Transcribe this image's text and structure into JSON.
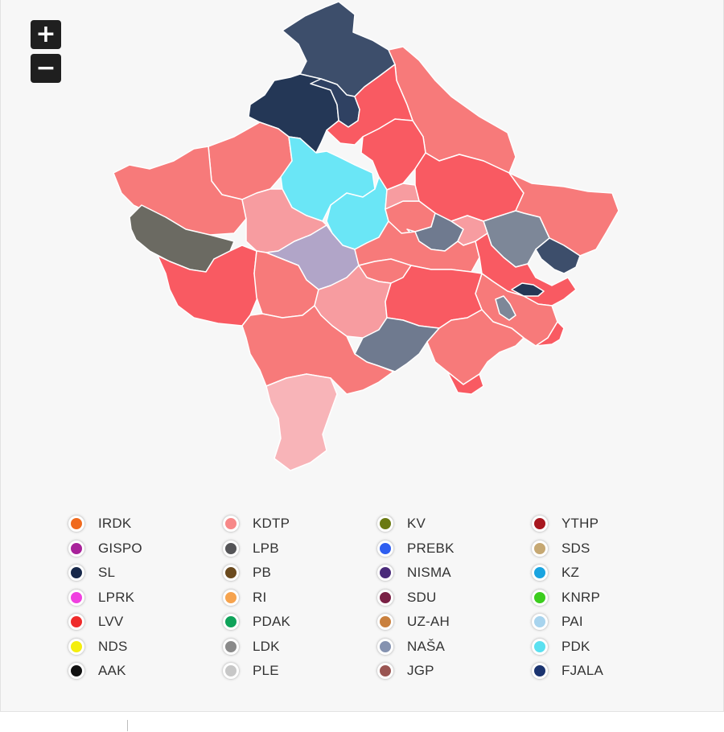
{
  "zoom": {
    "in_label": "+",
    "out_label": "−"
  },
  "colors": {
    "kdtp_strong": "#f95a62",
    "kdtp_mid": "#f77a7a",
    "kdtp_light": "#f79ca0",
    "kdtp_pale": "#f8b4b8",
    "lvv_light": "#fa8e8e",
    "pdk": "#6ae6f6",
    "sl_dark": "#243756",
    "sl_mid": "#3d4e6b",
    "lpb": "#6b6a62",
    "nasa": "#b1a5c8",
    "grey_blue": "#6f7a8f",
    "grey_blue_light": "#7d8798"
  },
  "legend": [
    {
      "label": "IRDK",
      "color": "#f06a1e"
    },
    {
      "label": "GISPO",
      "color": "#a8229a"
    },
    {
      "label": "SL",
      "color": "#17284a"
    },
    {
      "label": "LPRK",
      "color": "#f040e0"
    },
    {
      "label": "LVV",
      "color": "#ef2b2b"
    },
    {
      "label": "NDS",
      "color": "#f4ee0e"
    },
    {
      "label": "AAK",
      "color": "#111111"
    },
    {
      "label": "KDTP",
      "color": "#f78888"
    },
    {
      "label": "LPB",
      "color": "#555558"
    },
    {
      "label": "PB",
      "color": "#6b4a1e"
    },
    {
      "label": "RI",
      "color": "#f6a34e"
    },
    {
      "label": "PDAK",
      "color": "#0fa35a"
    },
    {
      "label": "LDK",
      "color": "#8a8a8a"
    },
    {
      "label": "PLE",
      "color": "#c7c7c7"
    },
    {
      "label": "KV",
      "color": "#6b7a12"
    },
    {
      "label": "PREBK",
      "color": "#2f5ef0"
    },
    {
      "label": "NISMA",
      "color": "#4a2a7a"
    },
    {
      "label": "SDU",
      "color": "#7a2145"
    },
    {
      "label": "UZ-AH",
      "color": "#c9803e"
    },
    {
      "label": "NAŠA",
      "color": "#8592b0"
    },
    {
      "label": "JGP",
      "color": "#9a5552"
    },
    {
      "label": "YTHP",
      "color": "#a8171f"
    },
    {
      "label": "SDS",
      "color": "#c6a873"
    },
    {
      "label": "KZ",
      "color": "#1aa4e0"
    },
    {
      "label": "KNRP",
      "color": "#3ccd1e"
    },
    {
      "label": "PAI",
      "color": "#a8d4ee"
    },
    {
      "label": "PDK",
      "color": "#5ae0f0"
    },
    {
      "label": "FJALA",
      "color": "#1b3470"
    }
  ]
}
